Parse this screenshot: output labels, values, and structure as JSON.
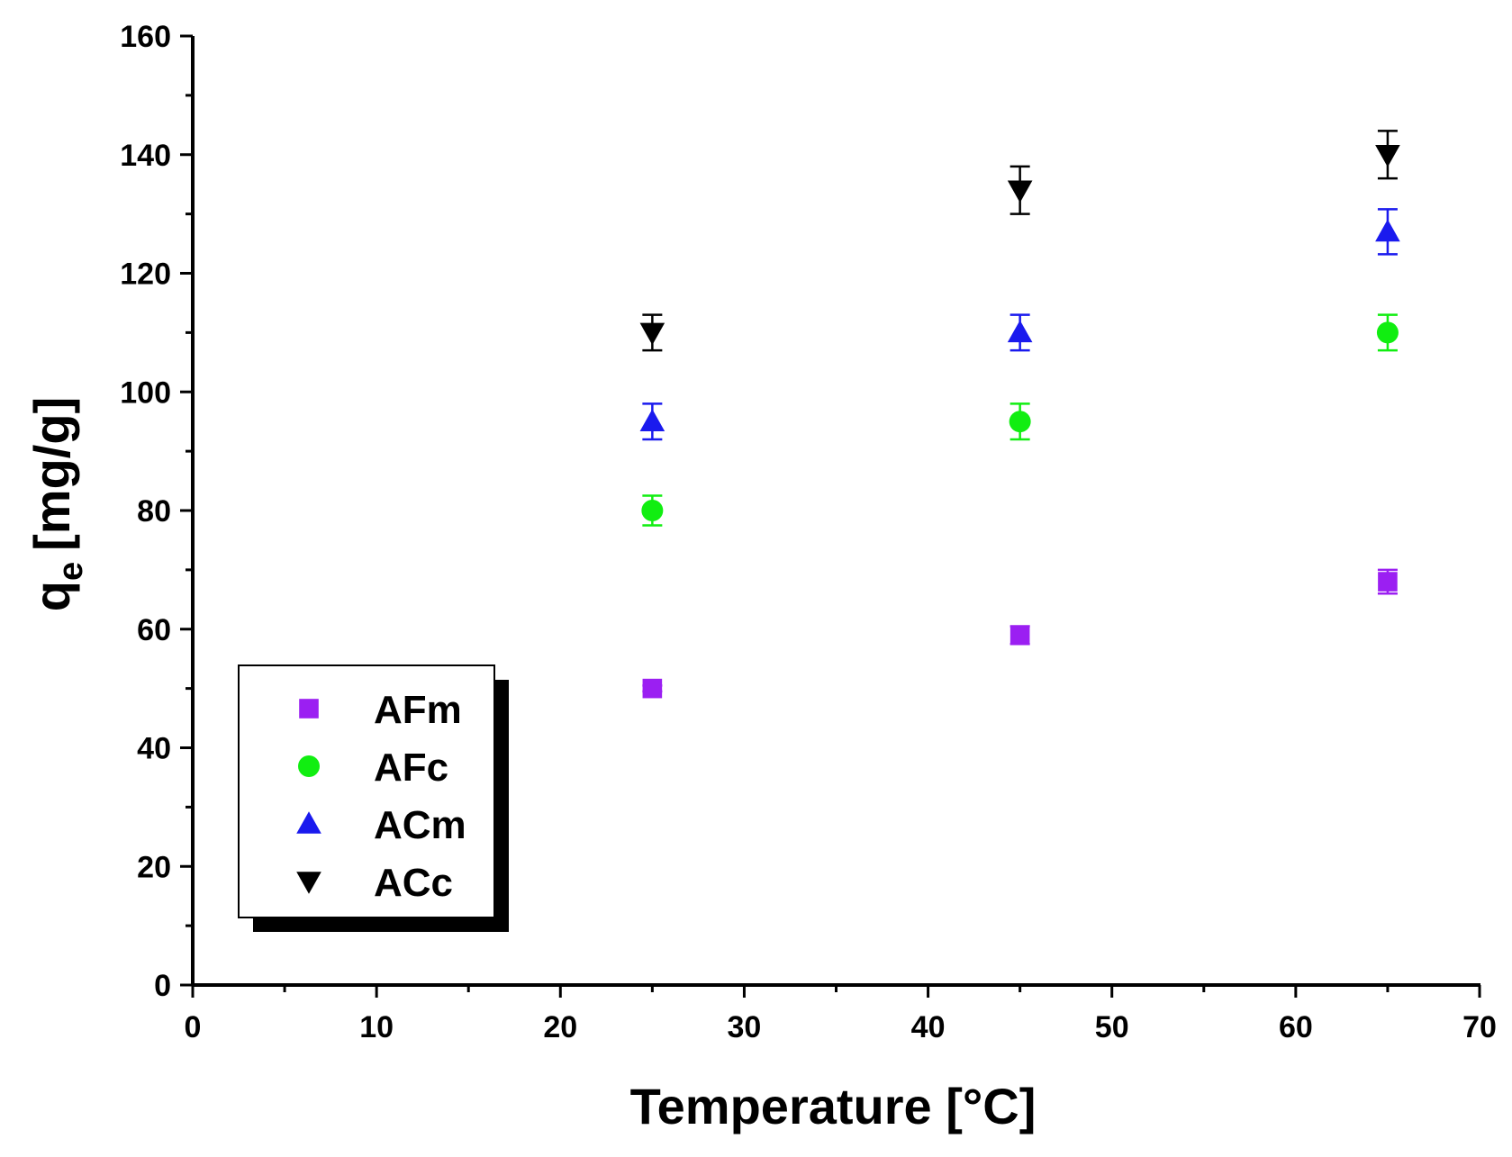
{
  "chart_data": {
    "type": "scatter",
    "title": "",
    "xlabel": "Temperature [°C]",
    "ylabel_main": "q",
    "ylabel_sub": "e",
    "ylabel_unit": "[mg/g]",
    "xlim": [
      0,
      70
    ],
    "ylim": [
      0,
      160
    ],
    "x_ticks": [
      0,
      10,
      20,
      30,
      40,
      50,
      60,
      70
    ],
    "y_ticks": [
      0,
      20,
      40,
      60,
      80,
      100,
      120,
      140,
      160
    ],
    "x_tick_labels": [
      "0",
      "10",
      "20",
      "30",
      "40",
      "50",
      "60",
      "70"
    ],
    "y_tick_labels": [
      "0",
      "20",
      "40",
      "60",
      "80",
      "100",
      "120",
      "140",
      "160"
    ],
    "grid": false,
    "legend_position": "bottom-left",
    "x": [
      25,
      45,
      65
    ],
    "series": [
      {
        "name": "AFm",
        "marker": "square",
        "color": "#9b1ff2",
        "values": [
          50,
          59,
          68
        ],
        "errors": [
          0.5,
          1.5,
          2
        ]
      },
      {
        "name": "AFc",
        "marker": "circle",
        "color": "#11ee11",
        "values": [
          80,
          95,
          110
        ],
        "errors": [
          2.5,
          3,
          3
        ]
      },
      {
        "name": "ACm",
        "marker": "triangle-up",
        "color": "#1a1aee",
        "values": [
          95,
          110,
          127
        ],
        "errors": [
          3,
          3,
          3.8
        ]
      },
      {
        "name": "ACc",
        "marker": "triangle-down",
        "color": "#000000",
        "values": [
          110,
          134,
          140
        ],
        "errors": [
          3,
          4,
          4
        ]
      }
    ]
  }
}
